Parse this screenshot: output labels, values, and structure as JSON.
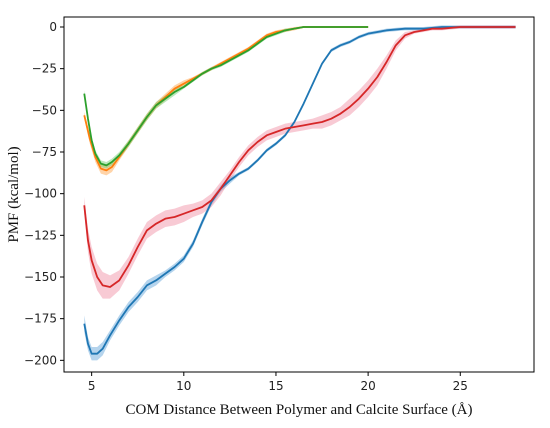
{
  "chart_data": {
    "type": "line",
    "title": "",
    "xlabel": "COM Distance Between Polymer and Calcite Surface (Å)",
    "ylabel": "PMF (kcal/mol)",
    "xlim": [
      3.5,
      29
    ],
    "ylim": [
      -207,
      6
    ],
    "xticks": [
      {
        "value": 5,
        "label": "5"
      },
      {
        "value": 10,
        "label": "10"
      },
      {
        "value": 15,
        "label": "15"
      },
      {
        "value": 20,
        "label": "20"
      },
      {
        "value": 25,
        "label": "25"
      }
    ],
    "yticks": [
      {
        "value": 0,
        "label": "0"
      },
      {
        "value": -25,
        "label": "−25"
      },
      {
        "value": -50,
        "label": "−50"
      },
      {
        "value": -75,
        "label": "−75"
      },
      {
        "value": -100,
        "label": "−100"
      },
      {
        "value": -125,
        "label": "−125"
      },
      {
        "value": -150,
        "label": "−150"
      },
      {
        "value": -175,
        "label": "−175"
      },
      {
        "value": -200,
        "label": "−200"
      }
    ],
    "grid": false,
    "legend": "none",
    "series": [
      {
        "color": "#ff7f0e",
        "band_color": "#ff9f40",
        "x": [
          4.6,
          4.9,
          5.2,
          5.5,
          5.8,
          6.1,
          6.5,
          7.0,
          7.5,
          8.0,
          8.5,
          9.0,
          9.5,
          10.0,
          10.5,
          11.0,
          11.5,
          12.0,
          12.5,
          13.0,
          13.5,
          14.0,
          14.5,
          15.0,
          15.5,
          16.0,
          16.5,
          17.0,
          18.0,
          19.0,
          20.0
        ],
        "y": [
          -53,
          -67,
          -78,
          -85,
          -86,
          -84,
          -78,
          -70,
          -62,
          -54,
          -47,
          -42,
          -37,
          -34,
          -31,
          -28,
          -25,
          -22,
          -19,
          -16,
          -13,
          -9,
          -5,
          -3,
          -2,
          -1,
          0,
          0,
          0,
          0,
          0
        ],
        "band": [
          2,
          3,
          3,
          3,
          3,
          3,
          2,
          2,
          2,
          2,
          2,
          2,
          2,
          2,
          1,
          1,
          1,
          1,
          1,
          1,
          1,
          1,
          1,
          1,
          1,
          1,
          0.5,
          0.5,
          0.5,
          0.5,
          0.5
        ]
      },
      {
        "color": "#2ca02c",
        "band_color": "#66cc66",
        "x": [
          4.6,
          4.8,
          5.0,
          5.2,
          5.5,
          5.8,
          6.1,
          6.5,
          7.0,
          7.5,
          8.0,
          8.5,
          9.0,
          9.5,
          10.0,
          10.5,
          11.0,
          11.5,
          12.0,
          12.5,
          13.0,
          13.5,
          14.0,
          14.5,
          15.0,
          15.5,
          16.0,
          16.5,
          17.0,
          18.0,
          19.0,
          20.0
        ],
        "y": [
          -40,
          -55,
          -68,
          -76,
          -82,
          -83,
          -81,
          -77,
          -70,
          -62,
          -54,
          -47,
          -43,
          -39,
          -36,
          -32,
          -28,
          -25,
          -23,
          -20,
          -17,
          -14,
          -10,
          -6,
          -4,
          -2,
          -1,
          0,
          0,
          0,
          0,
          0
        ],
        "band": [
          2,
          2,
          2,
          2,
          2,
          2,
          2,
          2,
          2,
          2,
          2,
          2,
          2,
          2,
          1,
          1,
          1,
          1,
          1,
          1,
          1,
          1,
          1,
          1,
          1,
          1,
          0.5,
          0.5,
          0.5,
          0.5,
          0.5,
          0.5
        ]
      },
      {
        "color": "#1f77b4",
        "band_color": "#5aa0d8",
        "x": [
          4.6,
          4.8,
          5.0,
          5.3,
          5.6,
          6.0,
          6.5,
          7.0,
          7.5,
          8.0,
          8.5,
          9.0,
          9.5,
          10.0,
          10.5,
          11.0,
          11.5,
          12.0,
          12.5,
          13.0,
          13.5,
          14.0,
          14.5,
          15.0,
          15.5,
          16.0,
          16.5,
          17.0,
          17.5,
          18.0,
          18.5,
          19.0,
          19.5,
          20.0,
          21.0,
          22.0,
          23.0,
          24.0,
          25.0,
          26.0,
          27.0,
          28.0
        ],
        "y": [
          -178,
          -190,
          -196,
          -196,
          -193,
          -185,
          -176,
          -168,
          -162,
          -155,
          -152,
          -148,
          -144,
          -139,
          -130,
          -117,
          -105,
          -97,
          -92,
          -88,
          -85,
          -80,
          -74,
          -70,
          -65,
          -57,
          -46,
          -34,
          -22,
          -14,
          -11,
          -9,
          -6,
          -4,
          -2,
          -1,
          -1,
          0,
          0,
          0,
          0,
          0
        ],
        "band": [
          5,
          4,
          4,
          4,
          4,
          3,
          3,
          3,
          3,
          3,
          3,
          2,
          2,
          2,
          2,
          2,
          2,
          2,
          2,
          1,
          1,
          1,
          1,
          1,
          1,
          1,
          1,
          1,
          1,
          1,
          1,
          1,
          1,
          1,
          1,
          1,
          1,
          1,
          1,
          1,
          1,
          1
        ]
      },
      {
        "color": "#d62728",
        "band_color": "#f08aa0",
        "x": [
          4.6,
          4.8,
          5.0,
          5.3,
          5.6,
          6.0,
          6.5,
          7.0,
          7.5,
          8.0,
          8.5,
          9.0,
          9.5,
          10.0,
          10.5,
          11.0,
          11.5,
          12.0,
          12.5,
          13.0,
          13.5,
          14.0,
          14.5,
          15.0,
          15.5,
          16.0,
          16.5,
          17.0,
          17.5,
          18.0,
          18.5,
          19.0,
          19.5,
          20.0,
          20.5,
          21.0,
          21.5,
          22.0,
          22.5,
          23.0,
          23.5,
          24.0,
          25.0,
          26.0,
          27.0,
          28.0
        ],
        "y": [
          -107,
          -128,
          -140,
          -150,
          -155,
          -156,
          -152,
          -143,
          -132,
          -122,
          -118,
          -115,
          -114,
          -112,
          -110,
          -108,
          -104,
          -97,
          -89,
          -81,
          -74,
          -69,
          -65,
          -63,
          -61,
          -60,
          -59,
          -58,
          -57,
          -55,
          -52,
          -48,
          -43,
          -37,
          -30,
          -21,
          -11,
          -5,
          -3,
          -2,
          -1,
          -1,
          0,
          0,
          0,
          0
        ],
        "band": [
          5,
          7,
          8,
          8,
          8,
          7,
          6,
          5,
          5,
          5,
          5,
          5,
          5,
          5,
          4,
          4,
          4,
          4,
          3,
          3,
          3,
          3,
          3,
          3,
          3,
          3,
          3,
          3,
          4,
          4,
          4,
          5,
          5,
          5,
          5,
          4,
          3,
          2,
          1,
          1,
          1,
          1,
          1,
          1,
          1,
          1
        ]
      }
    ]
  }
}
